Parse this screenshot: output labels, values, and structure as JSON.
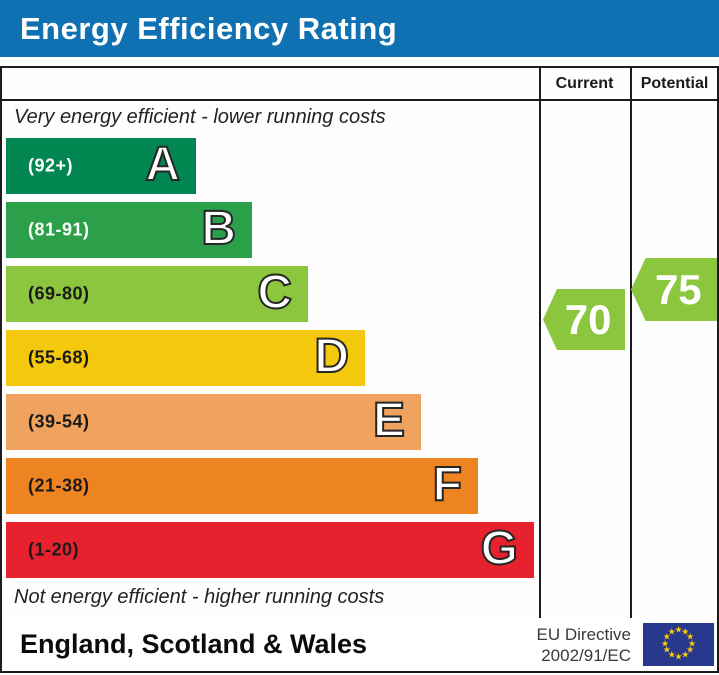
{
  "title": "Energy Efficiency Rating",
  "columns": {
    "current": "Current",
    "potential": "Potential"
  },
  "top_note": "Very energy efficient - lower running costs",
  "bottom_note": "Not energy efficient - higher running costs",
  "ratings": {
    "current": "70",
    "potential": "75"
  },
  "footer": {
    "region": "England, Scotland & Wales",
    "directive_line1": "EU Directive",
    "directive_line2": "2002/91/EC",
    "eu_flag_icon": "eu-flag"
  },
  "colors": {
    "title_bar_bg": "#0f70b2",
    "title_text": "#ffffff",
    "border": "#1c1c1c",
    "arrow_green": "#8cc63f",
    "eu_flag_navy": "#28388c",
    "eu_star_yellow": "#ffcc00"
  },
  "chart_data": {
    "type": "bar",
    "title": "Energy Efficiency Rating",
    "note_top": "Very energy efficient - lower running costs",
    "note_bottom": "Not energy efficient - higher running costs",
    "columns": [
      "Current",
      "Potential"
    ],
    "bands": [
      {
        "letter": "A",
        "range_label": "(92+)",
        "min": 92,
        "max": 100,
        "color": "#018551",
        "label_color": "#ffffff"
      },
      {
        "letter": "B",
        "range_label": "(81-91)",
        "min": 81,
        "max": 91,
        "color": "#2c9f4a",
        "label_color": "#ffffff"
      },
      {
        "letter": "C",
        "range_label": "(69-80)",
        "min": 69,
        "max": 80,
        "color": "#8cc63f",
        "label_color": "#1a1a1a"
      },
      {
        "letter": "D",
        "range_label": "(55-68)",
        "min": 55,
        "max": 68,
        "color": "#f4c80c",
        "label_color": "#1a1a1a"
      },
      {
        "letter": "E",
        "range_label": "(39-54)",
        "min": 39,
        "max": 54,
        "color": "#efa35e",
        "label_color": "#1a1a1a"
      },
      {
        "letter": "F",
        "range_label": "(21-38)",
        "min": 21,
        "max": 38,
        "color": "#ee8322",
        "label_color": "#1a1a1a"
      },
      {
        "letter": "G",
        "range_label": "(1-20)",
        "min": 1,
        "max": 20,
        "color": "#e8212e",
        "label_color": "#1a1a1a"
      }
    ],
    "current": {
      "value": 70,
      "band": "C",
      "color": "#8cc63f"
    },
    "potential": {
      "value": 75,
      "band": "C",
      "color": "#8cc63f"
    },
    "region": "England, Scotland & Wales",
    "directive": "EU Directive 2002/91/EC"
  }
}
